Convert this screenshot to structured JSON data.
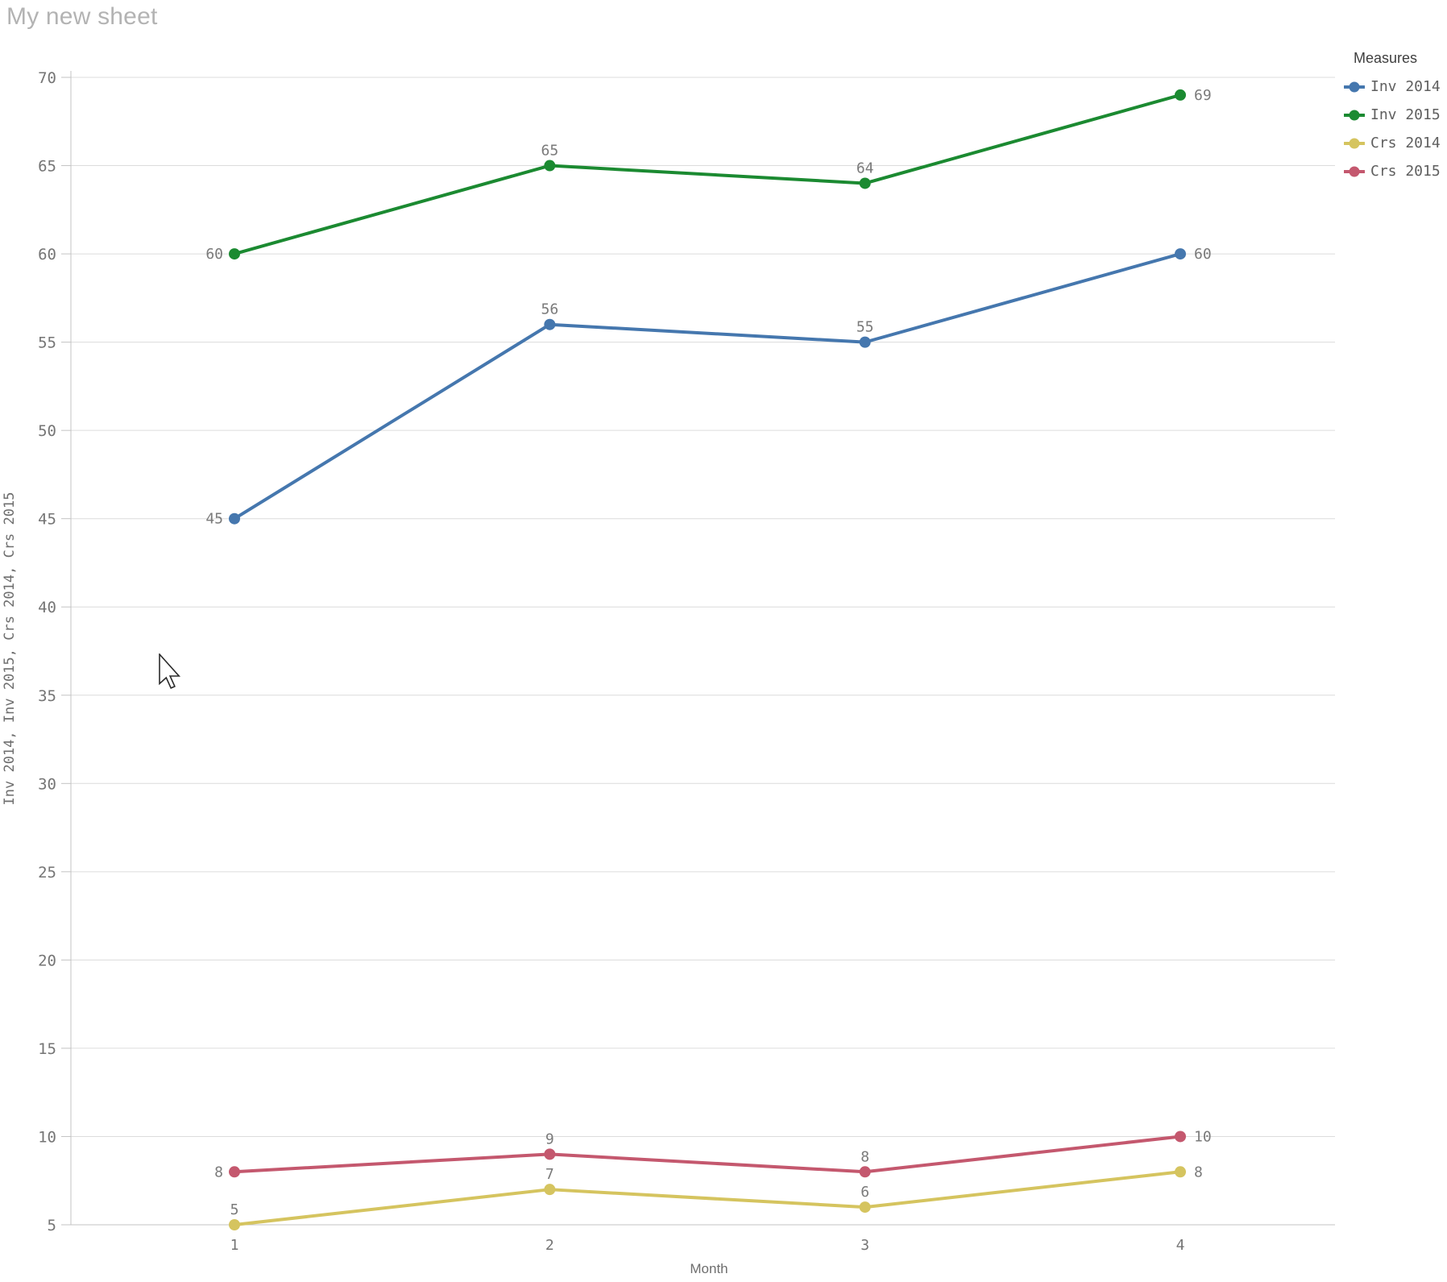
{
  "title": "My new sheet",
  "legend": {
    "title": "Measures",
    "items": [
      {
        "label": "Inv 2014",
        "color": "#4577ae"
      },
      {
        "label": "Inv 2015",
        "color": "#1b8a31"
      },
      {
        "label": "Crs 2014",
        "color": "#d5c45f"
      },
      {
        "label": "Crs 2015",
        "color": "#c4586e"
      }
    ]
  },
  "chart_data": {
    "type": "line",
    "x": [
      1,
      2,
      3,
      4
    ],
    "xticks": [
      "1",
      "2",
      "3",
      "4"
    ],
    "xlabel": "Month",
    "ylabel": "Inv 2014, Inv 2015, Crs 2014, Crs 2015",
    "ylim": [
      5,
      70
    ],
    "ytick_step": 5,
    "yticks": [
      5,
      10,
      15,
      20,
      25,
      30,
      35,
      40,
      45,
      50,
      55,
      60,
      65,
      70
    ],
    "grid": true,
    "data_labels": true,
    "legend_position": "top-right",
    "series": [
      {
        "name": "Inv 2014",
        "color": "#4577ae",
        "values": [
          45,
          56,
          55,
          60
        ]
      },
      {
        "name": "Inv 2015",
        "color": "#1b8a31",
        "values": [
          60,
          65,
          64,
          69
        ]
      },
      {
        "name": "Crs 2014",
        "color": "#d5c45f",
        "values": [
          5,
          7,
          6,
          8
        ]
      },
      {
        "name": "Crs 2015",
        "color": "#c4586e",
        "values": [
          8,
          9,
          8,
          10
        ]
      }
    ]
  }
}
